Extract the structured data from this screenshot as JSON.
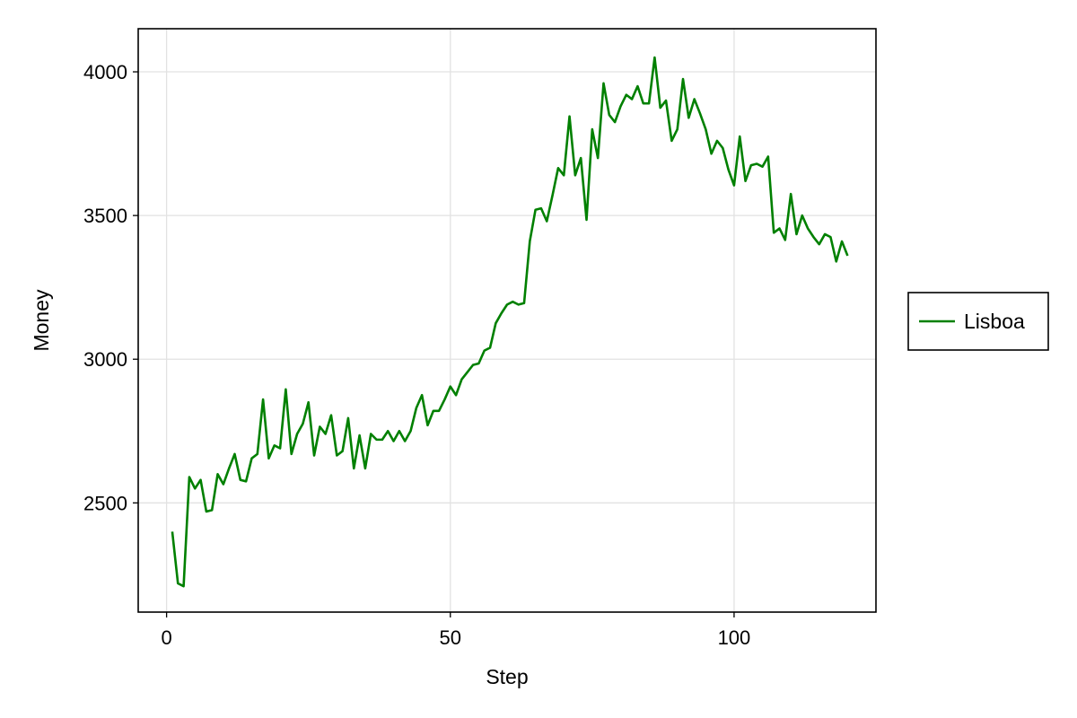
{
  "chart_data": {
    "type": "line",
    "xlabel": "Step",
    "ylabel": "Money",
    "xlim": [
      -5,
      125
    ],
    "ylim": [
      2120,
      4150
    ],
    "xticks": [
      0,
      50,
      100
    ],
    "yticks": [
      2500,
      3000,
      3500,
      4000
    ],
    "grid": true,
    "legend_position": "right",
    "series": [
      {
        "name": "Lisboa",
        "color": "#008000",
        "x": [
          1,
          2,
          3,
          4,
          5,
          6,
          7,
          8,
          9,
          10,
          11,
          12,
          13,
          14,
          15,
          16,
          17,
          18,
          19,
          20,
          21,
          22,
          23,
          24,
          25,
          26,
          27,
          28,
          29,
          30,
          31,
          32,
          33,
          34,
          35,
          36,
          37,
          38,
          39,
          40,
          41,
          42,
          43,
          44,
          45,
          46,
          47,
          48,
          49,
          50,
          51,
          52,
          53,
          54,
          55,
          56,
          57,
          58,
          59,
          60,
          61,
          62,
          63,
          64,
          65,
          66,
          67,
          68,
          69,
          70,
          71,
          72,
          73,
          74,
          75,
          76,
          77,
          78,
          79,
          80,
          81,
          82,
          83,
          84,
          85,
          86,
          87,
          88,
          89,
          90,
          91,
          92,
          93,
          94,
          95,
          96,
          97,
          98,
          99,
          100,
          101,
          102,
          103,
          104,
          105,
          106,
          107,
          108,
          109,
          110,
          111,
          112,
          113,
          114,
          115,
          116,
          117,
          118,
          119,
          120
        ],
        "y": [
          2400,
          2220,
          2210,
          2590,
          2550,
          2580,
          2470,
          2475,
          2600,
          2565,
          2620,
          2670,
          2580,
          2575,
          2655,
          2670,
          2860,
          2655,
          2700,
          2690,
          2895,
          2670,
          2740,
          2775,
          2850,
          2665,
          2765,
          2740,
          2805,
          2665,
          2680,
          2795,
          2620,
          2735,
          2620,
          2740,
          2720,
          2720,
          2750,
          2715,
          2750,
          2715,
          2750,
          2830,
          2875,
          2770,
          2820,
          2820,
          2860,
          2905,
          2875,
          2930,
          2955,
          2980,
          2985,
          3030,
          3040,
          3125,
          3160,
          3190,
          3200,
          3190,
          3195,
          3410,
          3520,
          3525,
          3480,
          3570,
          3665,
          3640,
          3845,
          3640,
          3700,
          3485,
          3800,
          3700,
          3960,
          3850,
          3825,
          3880,
          3920,
          3905,
          3950,
          3890,
          3890,
          4050,
          3875,
          3900,
          3760,
          3800,
          3975,
          3840,
          3905,
          3855,
          3800,
          3715,
          3760,
          3735,
          3660,
          3605,
          3775,
          3620,
          3675,
          3680,
          3670,
          3705,
          3440,
          3455,
          3415,
          3575,
          3435,
          3500,
          3455,
          3425,
          3400,
          3435,
          3425,
          3340,
          3410,
          3360
        ]
      }
    ]
  }
}
